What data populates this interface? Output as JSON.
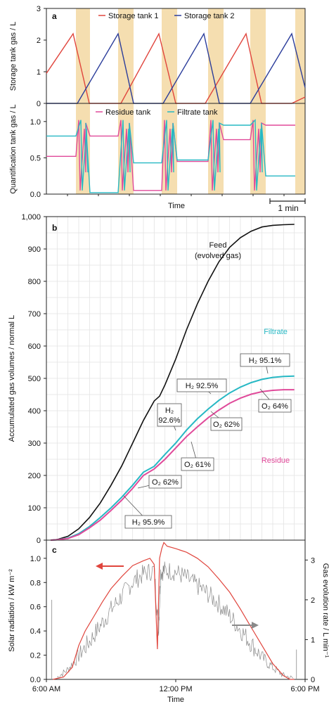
{
  "chart_data": [
    {
      "panel": "a (upper)",
      "panel_label": "a",
      "type": "line",
      "ylabel": "Storage tank gas / L",
      "yticks": [
        "0",
        "1",
        "2",
        "3"
      ],
      "ylim": [
        0,
        3
      ],
      "legend_position": "top",
      "series": [
        {
          "name": "Storage tank 1",
          "color": "#e0453d",
          "shape": "sawtooth: rises to 2.2 L then drains to 0"
        },
        {
          "name": "Storage tank 2",
          "color": "#2b3d9b",
          "shape": "sawtooth: rises to 2.2 L then drains to 0"
        }
      ],
      "peak_value": 2.2,
      "highlight_color": "#f5deb0"
    },
    {
      "panel": "a (lower)",
      "type": "line",
      "ylabel": "Quantification tank gas / L",
      "xlabel": "Time",
      "yticks": [
        "0.0",
        "0.5",
        "1.0"
      ],
      "ylim": [
        0,
        1.25
      ],
      "scalebar_label": "1 min",
      "legend_position": "top",
      "series": [
        {
          "name": "Residue tank",
          "color": "#e04a9a",
          "levels": [
            0.52,
            0.8,
            0.05,
            0.45,
            0.75,
            0.95
          ]
        },
        {
          "name": "Filtrate tank",
          "color": "#27b8c4",
          "levels": [
            0.8,
            0.02,
            0.43,
            0.47,
            0.95,
            0.25
          ]
        }
      ]
    },
    {
      "panel": "b",
      "panel_label": "b",
      "type": "line",
      "ylabel": "Accumulated gas volumes / normal L",
      "ylim": [
        0,
        1000
      ],
      "yticks": [
        "0",
        "100",
        "200",
        "300",
        "400",
        "500",
        "600",
        "700",
        "800",
        "900",
        "1,000"
      ],
      "x_time_hours": [
        6,
        18
      ],
      "grid": true,
      "series": [
        {
          "name": "Feed (evolved gas)",
          "label_line1": "Feed",
          "label_line2": "(evolved gas)",
          "color": "#111111",
          "x": [
            6.5,
            7,
            7.5,
            8,
            8.5,
            9,
            9.5,
            10,
            10.5,
            11,
            11.25,
            11.5,
            12,
            12.5,
            13,
            13.5,
            14,
            14.5,
            15,
            15.5,
            16,
            16.5,
            17,
            17.5
          ],
          "y": [
            2,
            12,
            35,
            70,
            115,
            170,
            230,
            300,
            370,
            430,
            445,
            480,
            560,
            650,
            730,
            800,
            860,
            905,
            935,
            955,
            968,
            973,
            975,
            976
          ]
        },
        {
          "name": "Filtrate",
          "color": "#27b8c4",
          "x": [
            6.5,
            7,
            7.5,
            8,
            8.5,
            9,
            9.5,
            10,
            10.5,
            11,
            11.5,
            12,
            12.5,
            13,
            13.5,
            14,
            14.5,
            15,
            15.5,
            16,
            16.5,
            17,
            17.5
          ],
          "y": [
            1,
            6,
            20,
            42,
            70,
            100,
            133,
            170,
            210,
            228,
            265,
            300,
            340,
            375,
            405,
            432,
            455,
            473,
            487,
            497,
            503,
            506,
            507
          ]
        },
        {
          "name": "Residue",
          "color": "#e04a9a",
          "x": [
            6.5,
            7,
            7.5,
            8,
            8.5,
            9,
            9.5,
            10,
            10.5,
            11,
            11.5,
            12,
            12.5,
            13,
            13.5,
            14,
            14.5,
            15,
            15.5,
            16,
            16.5,
            17,
            17.5
          ],
          "y": [
            1,
            5,
            17,
            38,
            62,
            92,
            124,
            160,
            200,
            220,
            250,
            285,
            320,
            350,
            378,
            402,
            423,
            439,
            451,
            459,
            463,
            465,
            465
          ]
        }
      ],
      "annotations": [
        {
          "text": "H₂ 95.1%"
        },
        {
          "text": "H₂ 92.5%"
        },
        {
          "text_line1": "H₂",
          "text_line2": "92.6%"
        },
        {
          "text": "O₂ 64%"
        },
        {
          "text": "O₂ 62%"
        },
        {
          "text": "O₂ 61%"
        },
        {
          "text": "O₂ 62%"
        },
        {
          "text": "H₂ 95.9%"
        }
      ]
    },
    {
      "panel": "c",
      "panel_label": "c",
      "type": "line",
      "ylabel_left": "Solar radiation / kW m⁻²",
      "ylabel_right": "Gas evolution rate / L min⁻¹",
      "xlabel": "Time",
      "xticks": [
        "6:00 AM",
        "12:00 PM",
        "6:00 PM"
      ],
      "yticks_left": [
        "0.0",
        "0.2",
        "0.4",
        "0.6",
        "0.8",
        "1.0"
      ],
      "yticks_right": [
        "0",
        "1",
        "2",
        "3"
      ],
      "ylim_left": [
        0,
        1.15
      ],
      "ylim_right": [
        0,
        3.5
      ],
      "series": [
        {
          "name": "Solar radiation",
          "axis": "left",
          "color": "#e0453d",
          "x": [
            6.3,
            6.8,
            7.2,
            7.5,
            7.8,
            8.2,
            8.6,
            9,
            9.5,
            10,
            10.5,
            10.8,
            11,
            11.15,
            11.25,
            11.35,
            11.45,
            11.6,
            12,
            12.5,
            13,
            13.5,
            14,
            14.5,
            15,
            15.5,
            16,
            16.5,
            17,
            17.3,
            17.5
          ],
          "y": [
            0,
            0.02,
            0.1,
            0.28,
            0.4,
            0.52,
            0.64,
            0.75,
            0.85,
            0.94,
            0.98,
            1.0,
            0.95,
            0.25,
            1.0,
            1.08,
            1.13,
            1.1,
            1.08,
            1.05,
            1.0,
            0.93,
            0.83,
            0.72,
            0.58,
            0.43,
            0.28,
            0.13,
            0.03,
            0,
            0
          ]
        },
        {
          "name": "Gas evolution rate",
          "axis": "right",
          "color": "#8a8a8a",
          "x": [
            6.5,
            7,
            7.5,
            8,
            8.5,
            9,
            9.5,
            10,
            10.5,
            11,
            11.2,
            11.3,
            11.5,
            12,
            12.5,
            13,
            13.5,
            14,
            14.5,
            15,
            15.5,
            16,
            16.5,
            17,
            17.5
          ],
          "y": [
            0.05,
            0.25,
            0.6,
            0.95,
            1.35,
            1.75,
            2.1,
            2.45,
            2.65,
            2.75,
            1.2,
            2.7,
            2.75,
            2.7,
            2.55,
            2.35,
            2.15,
            1.9,
            1.6,
            1.25,
            0.9,
            0.55,
            0.3,
            0.1,
            0.02
          ]
        }
      ]
    }
  ]
}
